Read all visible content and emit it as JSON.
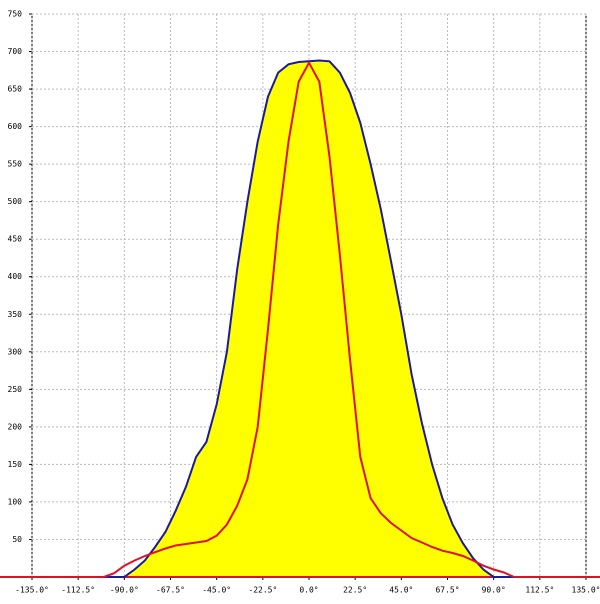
{
  "chart_data": {
    "type": "area-line",
    "x": [
      -100,
      -95,
      -90,
      -85,
      -80,
      -75,
      -70,
      -65,
      -60,
      -55,
      -50,
      -45,
      -40,
      -35,
      -30,
      -25,
      -20,
      -15,
      -10,
      -5,
      0,
      5,
      10,
      15,
      20,
      25,
      30,
      35,
      40,
      45,
      50,
      55,
      60,
      65,
      70,
      75,
      80,
      85,
      90,
      95,
      100
    ],
    "series": [
      {
        "color": "#1a1aa0",
        "fill": "#ffff00",
        "values": [
          0,
          0,
          0,
          10,
          22,
          40,
          60,
          88,
          120,
          160,
          180,
          230,
          300,
          410,
          500,
          580,
          640,
          672,
          683,
          686,
          687,
          688,
          687,
          672,
          645,
          605,
          550,
          490,
          420,
          350,
          270,
          205,
          150,
          105,
          70,
          45,
          25,
          10,
          0,
          0,
          0
        ]
      },
      {
        "color": "#e0102a",
        "values": [
          0,
          5,
          15,
          22,
          28,
          33,
          38,
          42,
          44,
          46,
          48,
          55,
          70,
          95,
          130,
          200,
          330,
          470,
          580,
          660,
          685,
          660,
          560,
          430,
          290,
          160,
          105,
          85,
          72,
          62,
          52,
          46,
          40,
          35,
          32,
          28,
          22,
          15,
          10,
          6,
          0
        ]
      }
    ],
    "xlim": [
      -135,
      135
    ],
    "xticks": [
      {
        "value": -135,
        "label": "-135.0°"
      },
      {
        "value": -112.5,
        "label": "-112.5°"
      },
      {
        "value": -90,
        "label": "-90.0°"
      },
      {
        "value": -67.5,
        "label": "-67.5°"
      },
      {
        "value": -45,
        "label": "-45.0°"
      },
      {
        "value": -22.5,
        "label": "-22.5°"
      },
      {
        "value": 0,
        "label": "0.0°"
      },
      {
        "value": 22.5,
        "label": "22.5°"
      },
      {
        "value": 45,
        "label": "45.0°"
      },
      {
        "value": 67.5,
        "label": "67.5°"
      },
      {
        "value": 90,
        "label": "90.0°"
      },
      {
        "value": 112.5,
        "label": "112.5°"
      },
      {
        "value": 135,
        "label": "135.0°"
      }
    ],
    "ylim": [
      0,
      750
    ],
    "yticks": [
      50,
      100,
      150,
      200,
      250,
      300,
      350,
      400,
      450,
      500,
      550,
      600,
      650,
      700,
      750
    ],
    "grid": true
  }
}
